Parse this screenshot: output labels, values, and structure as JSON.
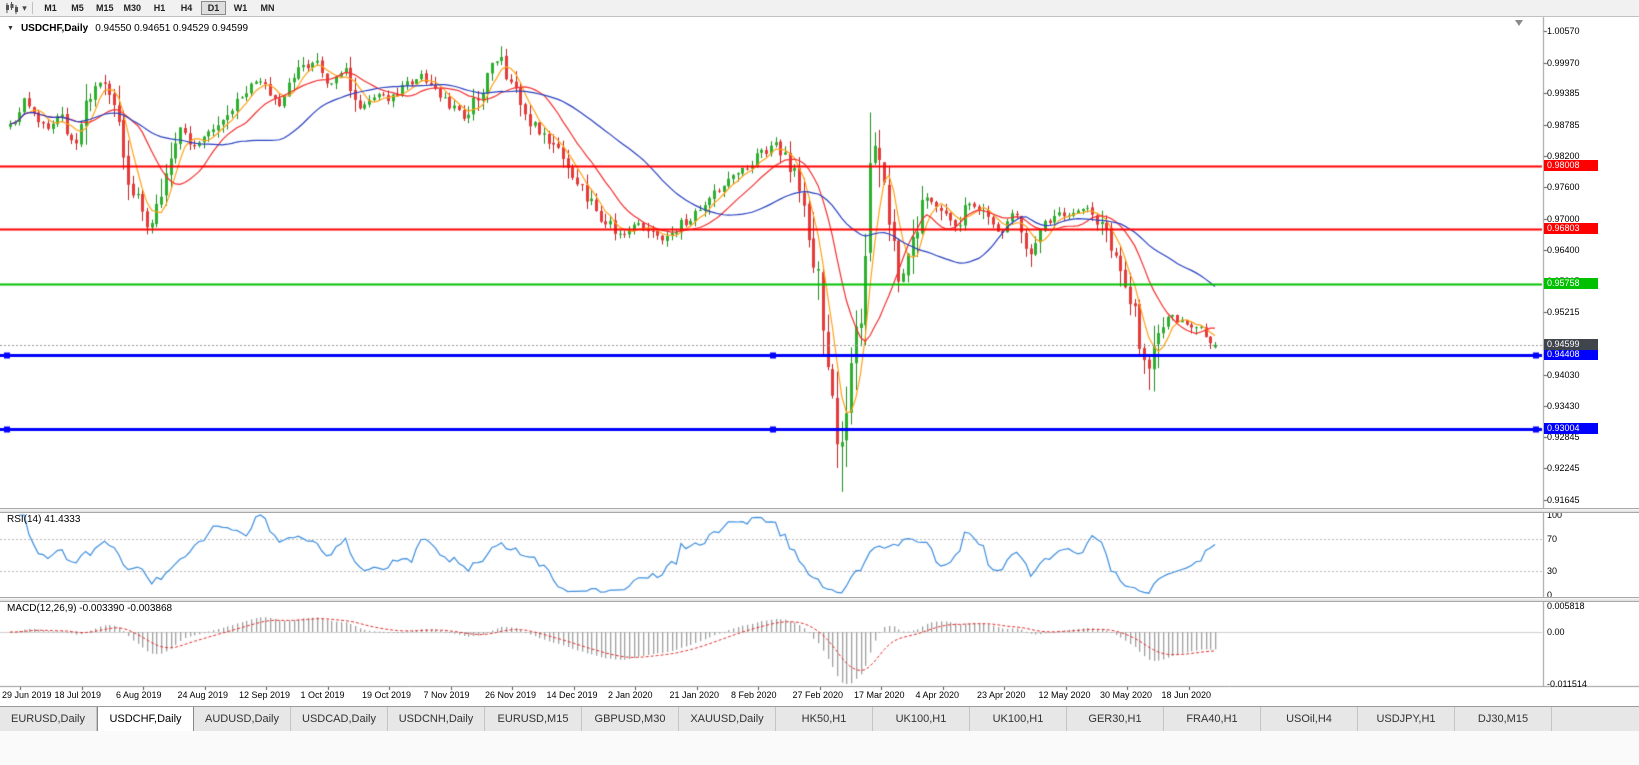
{
  "toolbar": {
    "timeframes": [
      "M1",
      "M5",
      "M15",
      "M30",
      "H1",
      "H4",
      "D1",
      "W1",
      "MN"
    ],
    "active_timeframe": "D1"
  },
  "chart": {
    "symbol_period": "USDCHF,Daily",
    "ohlc_text": "0.94550 0.94651 0.94529 0.94599"
  },
  "colors": {
    "candle_up": "#2FAF2F",
    "candle_down": "#E43B3B",
    "wick_up": "#1F8F1F",
    "wick_down": "#C22525",
    "rsi_line": "#3E8EDE",
    "macd_histogram": "#A0A0A0",
    "macd_signal": "#E03030",
    "current_price_line": "#999999",
    "current_price_badge": "#40444B",
    "level_dotted": "#BBBBBB"
  },
  "chart_data": {
    "type": "candlestick",
    "title": "USDCHF,Daily",
    "open": "0.94550",
    "high": "0.94651",
    "low": "0.94529",
    "close": "0.94599",
    "price_range": {
      "top": 1.0057,
      "bottom": 0.91645
    },
    "y_axis_ticks": [
      "1.00570",
      "0.99970",
      "0.99385",
      "0.98785",
      "0.98200",
      "0.97600",
      "0.97000",
      "0.96400",
      "0.95815",
      "0.95215",
      "0.94615",
      "0.94030",
      "0.93430",
      "0.92845",
      "0.92245",
      "0.91645"
    ],
    "x_axis_dates": [
      "29 Jun 2019",
      "18 Jul 2019",
      "6 Aug 2019",
      "24 Aug 2019",
      "12 Sep 2019",
      "1 Oct 2019",
      "19 Oct 2019",
      "7 Nov 2019",
      "26 Nov 2019",
      "14 Dec 2019",
      "2 Jan 2020",
      "21 Jan 2020",
      "8 Feb 2020",
      "27 Feb 2020",
      "17 Mar 2020",
      "4 Apr 2020",
      "23 Apr 2020",
      "12 May 2020",
      "30 May 2020",
      "18 Jun 2020"
    ],
    "date_tick_start_x": 20,
    "date_tick_step": 61.5,
    "candle_count": 256,
    "candle_x_range": [
      10,
      1215
    ],
    "horizontal_lines": [
      {
        "price": 0.98008,
        "label": "0.98008",
        "color": "#FF0000",
        "width": 2,
        "handles": false
      },
      {
        "price": 0.96803,
        "label": "0.96803",
        "color": "#FF0000",
        "width": 2,
        "handles": false
      },
      {
        "price": 0.95758,
        "label": "0.95758",
        "color": "#00C000",
        "width": 2,
        "handles": false
      },
      {
        "price": 0.94408,
        "label": "0.94408",
        "color": "#0000FF",
        "width": 3,
        "handles": true
      },
      {
        "price": 0.93004,
        "label": "0.93004",
        "color": "#0000FF",
        "width": 3,
        "handles": true
      }
    ],
    "current_price": {
      "value": 0.94599,
      "label": "0.94599"
    },
    "price_path": [
      [
        10,
        0.9878
      ],
      [
        25,
        0.9926
      ],
      [
        45,
        0.9869
      ],
      [
        60,
        0.9897
      ],
      [
        75,
        0.9831
      ],
      [
        95,
        0.9964
      ],
      [
        110,
        0.9935
      ],
      [
        130,
        0.9764
      ],
      [
        148,
        0.9678
      ],
      [
        160,
        0.9726
      ],
      [
        178,
        0.9878
      ],
      [
        195,
        0.9831
      ],
      [
        210,
        0.9859
      ],
      [
        225,
        0.9897
      ],
      [
        245,
        0.9945
      ],
      [
        263,
        0.9964
      ],
      [
        278,
        0.9916
      ],
      [
        295,
        0.9973
      ],
      [
        315,
        1.0002
      ],
      [
        330,
        0.9954
      ],
      [
        345,
        0.9983
      ],
      [
        360,
        0.9907
      ],
      [
        375,
        0.9935
      ],
      [
        390,
        0.9926
      ],
      [
        405,
        0.9954
      ],
      [
        420,
        0.9973
      ],
      [
        435,
        0.9945
      ],
      [
        450,
        0.9916
      ],
      [
        465,
        0.9888
      ],
      [
        480,
        0.9945
      ],
      [
        500,
        1.0011
      ],
      [
        515,
        0.9935
      ],
      [
        530,
        0.9888
      ],
      [
        545,
        0.985
      ],
      [
        560,
        0.9821
      ],
      [
        580,
        0.9764
      ],
      [
        600,
        0.9707
      ],
      [
        620,
        0.9669
      ],
      [
        640,
        0.9688
      ],
      [
        660,
        0.9659
      ],
      [
        680,
        0.9688
      ],
      [
        700,
        0.9716
      ],
      [
        720,
        0.9764
      ],
      [
        740,
        0.9792
      ],
      [
        760,
        0.9821
      ],
      [
        775,
        0.984
      ],
      [
        790,
        0.9802
      ],
      [
        805,
        0.9735
      ],
      [
        820,
        0.9564
      ],
      [
        835,
        0.9317
      ],
      [
        843,
        0.925
      ],
      [
        852,
        0.9412
      ],
      [
        862,
        0.9545
      ],
      [
        872,
        0.985
      ],
      [
        880,
        0.9783
      ],
      [
        890,
        0.9659
      ],
      [
        900,
        0.9564
      ],
      [
        912,
        0.965
      ],
      [
        925,
        0.9754
      ],
      [
        940,
        0.9716
      ],
      [
        955,
        0.9678
      ],
      [
        970,
        0.9735
      ],
      [
        985,
        0.9707
      ],
      [
        1000,
        0.9669
      ],
      [
        1015,
        0.9716
      ],
      [
        1030,
        0.9631
      ],
      [
        1045,
        0.9688
      ],
      [
        1060,
        0.9707
      ],
      [
        1075,
        0.9716
      ],
      [
        1090,
        0.9713
      ],
      [
        1105,
        0.9678
      ],
      [
        1120,
        0.9602
      ],
      [
        1135,
        0.9526
      ],
      [
        1147,
        0.9393
      ],
      [
        1158,
        0.9488
      ],
      [
        1170,
        0.9516
      ],
      [
        1185,
        0.9497
      ],
      [
        1200,
        0.9488
      ],
      [
        1213,
        0.946
      ]
    ],
    "extreme_wicks": [
      [
        148,
        "low",
        0.967
      ],
      [
        315,
        "high",
        1.0015
      ],
      [
        500,
        "high",
        1.0028
      ],
      [
        775,
        "high",
        0.9852
      ],
      [
        843,
        "low",
        0.918
      ],
      [
        872,
        "high",
        0.9902
      ],
      [
        1030,
        "low",
        0.9608
      ],
      [
        1147,
        "low",
        0.9374
      ]
    ],
    "volatility_regions": [
      [
        805,
        858,
        2.8
      ],
      [
        858,
        895,
        2.4
      ],
      [
        1128,
        1160,
        1.7
      ]
    ],
    "moving_averages": [
      {
        "period": 5,
        "color": "#FFA018"
      },
      {
        "period": 13,
        "color": "#F23030"
      },
      {
        "period": 34,
        "color": "#2840C0"
      }
    ],
    "indicators": {
      "rsi": {
        "title": "RSI(14) 41.4333",
        "period": 14,
        "current": 41.4333,
        "axis_labels": [
          "100",
          "70",
          "30",
          "0"
        ],
        "level_lines": [
          70,
          30
        ]
      },
      "macd": {
        "title": "MACD(12,26,9) -0.003390 -0.003868",
        "fast": 12,
        "slow": 26,
        "signal_period": 9,
        "values_text": "-0.003390 -0.003868",
        "axis_labels": [
          "0.005818",
          "0.00",
          "-0.011514"
        ]
      }
    }
  },
  "tabs": {
    "active_index": 1,
    "items": [
      "EURUSD,Daily",
      "USDCHF,Daily",
      "AUDUSD,Daily",
      "USDCAD,Daily",
      "USDCNH,Daily",
      "EURUSD,M15",
      "GBPUSD,M30",
      "XAUUSD,Daily",
      "HK50,H1",
      "UK100,H1",
      "UK100,H1",
      "GER30,H1",
      "FRA40,H1",
      "USOil,H4",
      "USDJPY,H1",
      "DJ30,M15"
    ]
  }
}
